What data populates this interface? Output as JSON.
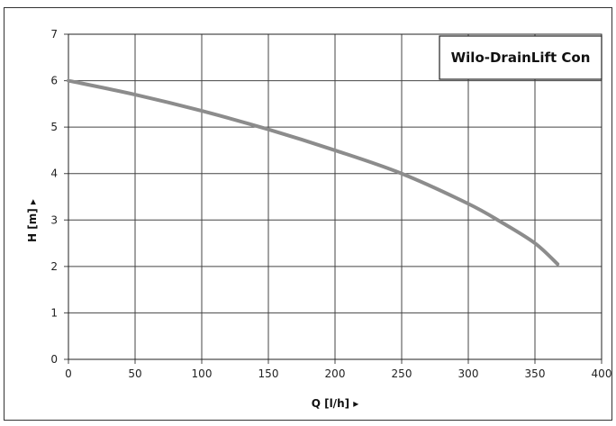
{
  "chart_data": {
    "type": "line",
    "title": "Wilo-DrainLift Con",
    "xlabel": "Q [l/h] ▸",
    "ylabel": "H [m] ▸",
    "xlim": [
      0,
      400
    ],
    "ylim": [
      0,
      7
    ],
    "xticks": [
      "0",
      "50",
      "100",
      "150",
      "200",
      "250",
      "300",
      "350",
      "400"
    ],
    "yticks": [
      "0",
      "1",
      "2",
      "3",
      "4",
      "5",
      "6",
      "7"
    ],
    "grid": true,
    "series": [
      {
        "x": [
          0,
          50,
          100,
          150,
          200,
          250,
          300,
          325,
          350,
          367
        ],
        "y": [
          6.0,
          5.7,
          5.35,
          4.95,
          4.5,
          4.0,
          3.35,
          2.95,
          2.5,
          2.05
        ]
      }
    ],
    "colors": {
      "curve": "#8c8c8c",
      "grid": "#444444",
      "frame": "#222222"
    }
  }
}
